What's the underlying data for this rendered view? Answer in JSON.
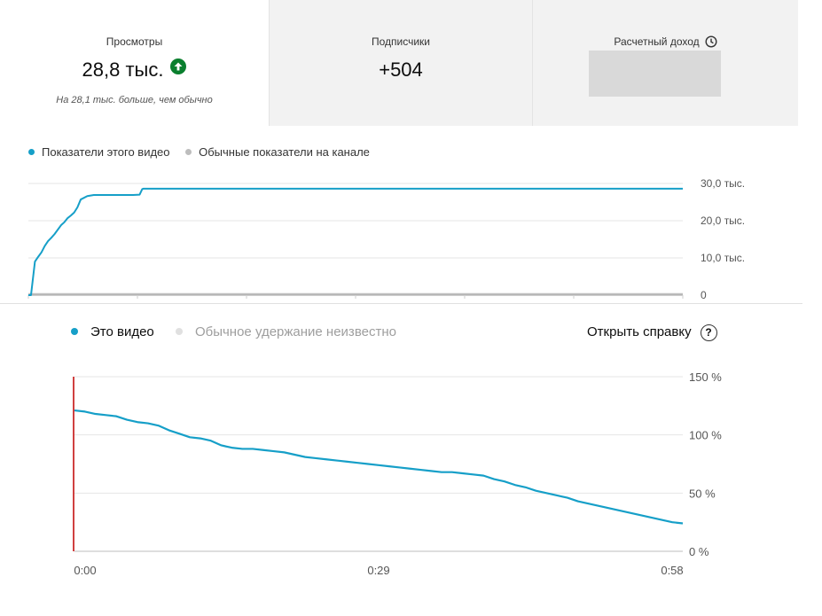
{
  "metrics": {
    "views": {
      "label": "Просмотры",
      "value": "28,8 тыс.",
      "note": "На 28,1 тыс. больше, чем обычно",
      "icon": "arrow-up-circle-icon",
      "icon_color": "#0a7f2e"
    },
    "subscribers": {
      "label": "Подписчики",
      "value": "+504"
    },
    "revenue": {
      "label": "Расчетный доход",
      "icon": "clock-icon"
    }
  },
  "views_legend": {
    "this_video": "Показатели этого видео",
    "typical": "Обычные показатели на канале"
  },
  "retention_legend": {
    "this_video": "Это видео",
    "typical": "Обычное удержание неизвестно",
    "help": "Открыть справку",
    "help_icon": "question-circle-icon"
  },
  "colors": {
    "accent": "#169fc8",
    "typical": "#bdbdbd",
    "marker": "#c00000"
  },
  "chart_data": [
    {
      "type": "line",
      "y_ticks": [
        "30,0 тыс.",
        "20,0 тыс.",
        "10,0 тыс.",
        "0"
      ],
      "ylim": [
        0,
        30000
      ],
      "grid": true,
      "series": [
        {
          "name": "Показатели этого видео",
          "x": [
            0,
            0.4,
            1,
            1.5,
            2,
            2.5,
            3,
            3.5,
            4,
            5,
            5.5,
            6,
            6.5,
            7,
            7.5,
            8,
            9,
            10,
            10.5,
            11,
            12,
            13,
            14,
            15,
            16,
            17,
            17.4,
            17.6,
            18,
            20,
            25,
            30,
            40,
            50,
            60,
            70,
            80,
            90,
            100
          ],
          "values": [
            0,
            0,
            9000,
            10300,
            11500,
            13200,
            14500,
            15400,
            16400,
            18800,
            19600,
            20700,
            21400,
            22200,
            23600,
            25700,
            26600,
            26900,
            26900,
            26900,
            26900,
            26900,
            26900,
            26900,
            26900,
            27000,
            28500,
            28600,
            28600,
            28600,
            28600,
            28600,
            28600,
            28600,
            28600,
            28600,
            28600,
            28600,
            28600
          ]
        },
        {
          "name": "Обычные показатели на канале",
          "x": [
            0,
            100
          ],
          "values": [
            300,
            300
          ]
        }
      ]
    },
    {
      "type": "line",
      "x_ticks": [
        "0:00",
        "0:29",
        "0:58"
      ],
      "y_ticks": [
        "150 %",
        "100 %",
        "50 %",
        "0 %"
      ],
      "ylim": [
        0,
        150
      ],
      "xlim": [
        0,
        58
      ],
      "grid": true,
      "series": [
        {
          "name": "Это видео",
          "x": [
            0,
            1,
            2,
            3,
            4,
            5,
            6,
            7,
            8,
            9,
            10,
            11,
            12,
            13,
            14,
            15,
            16,
            17,
            18,
            19,
            20,
            21,
            22,
            23,
            24,
            25,
            26,
            27,
            28,
            29,
            30,
            31,
            32,
            33,
            34,
            35,
            36,
            37,
            38,
            39,
            40,
            41,
            42,
            43,
            44,
            45,
            46,
            47,
            48,
            49,
            50,
            51,
            52,
            53,
            54,
            55,
            56,
            57,
            58
          ],
          "values": [
            121,
            120,
            118,
            117,
            116,
            113,
            111,
            110,
            108,
            104,
            101,
            98,
            97,
            95,
            91,
            89,
            88,
            88,
            87,
            86,
            85,
            83,
            81,
            80,
            79,
            78,
            77,
            76,
            75,
            74,
            73,
            72,
            71,
            70,
            69,
            68,
            68,
            67,
            66,
            65,
            62,
            60,
            57,
            55,
            52,
            50,
            48,
            46,
            43,
            41,
            39,
            37,
            35,
            33,
            31,
            29,
            27,
            25,
            24
          ]
        }
      ]
    }
  ]
}
